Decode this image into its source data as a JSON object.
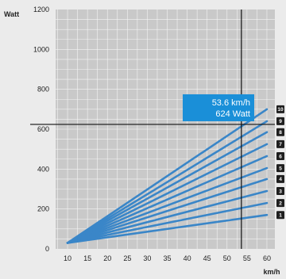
{
  "chart_data": {
    "type": "line",
    "ylabel": "Watt",
    "xlabel": "km/h",
    "xlim": [
      7,
      62
    ],
    "ylim": [
      0,
      1200
    ],
    "x_ticks": [
      10,
      15,
      20,
      25,
      30,
      35,
      40,
      45,
      50,
      55,
      60
    ],
    "y_ticks": [
      0,
      200,
      400,
      600,
      800,
      1000,
      1200
    ],
    "grid": true,
    "series": [
      {
        "name": "1",
        "x": [
          10,
          60
        ],
        "y": [
          30,
          170
        ]
      },
      {
        "name": "2",
        "x": [
          10,
          60
        ],
        "y": [
          30,
          230
        ]
      },
      {
        "name": "3",
        "x": [
          10,
          60
        ],
        "y": [
          30,
          290
        ]
      },
      {
        "name": "4",
        "x": [
          10,
          60
        ],
        "y": [
          30,
          350
        ]
      },
      {
        "name": "5",
        "x": [
          10,
          60
        ],
        "y": [
          30,
          405
        ]
      },
      {
        "name": "6",
        "x": [
          10,
          60
        ],
        "y": [
          30,
          465
        ]
      },
      {
        "name": "7",
        "x": [
          10,
          60
        ],
        "y": [
          30,
          525
        ]
      },
      {
        "name": "8",
        "x": [
          10,
          60
        ],
        "y": [
          30,
          585
        ]
      },
      {
        "name": "9",
        "x": [
          10,
          60
        ],
        "y": [
          30,
          640
        ]
      },
      {
        "name": "10",
        "x": [
          10,
          60
        ],
        "y": [
          30,
          700
        ]
      }
    ],
    "crosshair": {
      "x": 53.6,
      "y": 624
    },
    "annotation": {
      "line1": "53.6 km/h",
      "line2": "624 Watt"
    },
    "colors": {
      "line": "#3a86c8",
      "callout": "#1a8fd8",
      "badge": "#1f1f1f",
      "plot_bg": "#c9c9c9",
      "grid": "#f4f4f4"
    }
  }
}
